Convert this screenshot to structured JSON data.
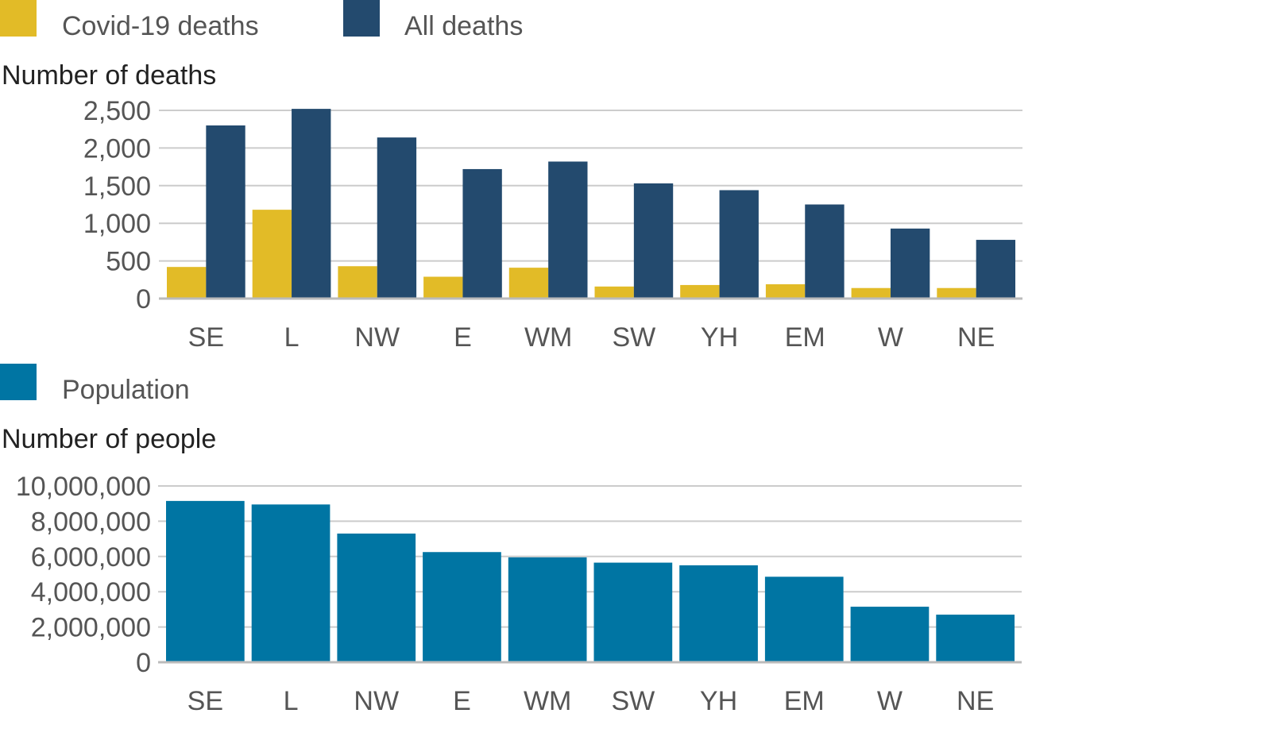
{
  "chart_data": [
    {
      "type": "bar",
      "ylabel": "Number of deaths",
      "categories": [
        "SE",
        "L",
        "NW",
        "E",
        "WM",
        "SW",
        "YH",
        "EM",
        "W",
        "NE"
      ],
      "ylim": [
        0,
        2500
      ],
      "yticks": [
        0,
        500,
        1000,
        1500,
        2000,
        2500
      ],
      "ytick_labels": [
        "0",
        "500",
        "1,000",
        "1,500",
        "2,000",
        "2,500"
      ],
      "grid": true,
      "legend_position": "top-left",
      "series": [
        {
          "name": "Covid-19 deaths",
          "color": "#e2bb27",
          "values": [
            420,
            1180,
            430,
            290,
            410,
            160,
            180,
            190,
            140,
            140
          ]
        },
        {
          "name": "All deaths",
          "color": "#234a6e",
          "values": [
            2300,
            2520,
            2140,
            1720,
            1820,
            1530,
            1440,
            1250,
            930,
            780
          ]
        }
      ]
    },
    {
      "type": "bar",
      "ylabel": "Number of people",
      "categories": [
        "SE",
        "L",
        "NW",
        "E",
        "WM",
        "SW",
        "YH",
        "EM",
        "W",
        "NE"
      ],
      "ylim": [
        0,
        10000000
      ],
      "yticks": [
        0,
        2000000,
        4000000,
        6000000,
        8000000,
        10000000
      ],
      "ytick_labels": [
        "0",
        "2,000,000",
        "4,000,000",
        "6,000,000",
        "8,000,000",
        "10,000,000"
      ],
      "grid": true,
      "legend_position": "top-left",
      "series": [
        {
          "name": "Population",
          "color": "#0075a3",
          "values": [
            9150000,
            8950000,
            7300000,
            6250000,
            5950000,
            5650000,
            5500000,
            4850000,
            3150000,
            2700000
          ]
        }
      ]
    }
  ]
}
